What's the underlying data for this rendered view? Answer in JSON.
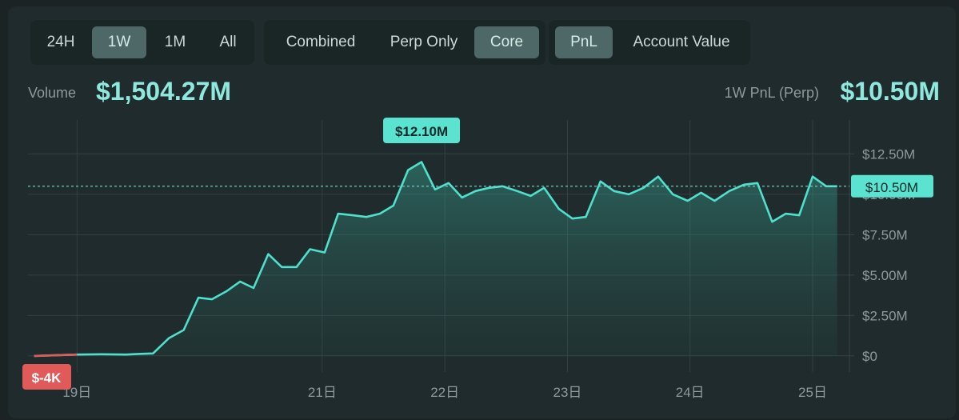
{
  "range_tabs": [
    {
      "label": "24H",
      "active": false
    },
    {
      "label": "1W",
      "active": true
    },
    {
      "label": "1M",
      "active": false
    },
    {
      "label": "All",
      "active": false
    }
  ],
  "scope_tabs": [
    {
      "label": "Combined",
      "active": false
    },
    {
      "label": "Perp Only",
      "active": false
    },
    {
      "label": "Core",
      "active": true
    }
  ],
  "metric_tabs": [
    {
      "label": "PnL",
      "active": true
    },
    {
      "label": "Account Value",
      "active": false
    }
  ],
  "stats": {
    "volume_label": "Volume",
    "volume_value": "$1,504.27M",
    "pnl_label": "1W PnL (Perp)",
    "pnl_value": "$10.50M"
  },
  "colors": {
    "line": "#4fe0cd",
    "badge_min": "#e05a5a",
    "grid": "#334142",
    "axis_text": "#8d9b9b"
  },
  "chart_data": {
    "type": "area",
    "title": "",
    "xlabel": "",
    "ylabel": "",
    "unit": "$M",
    "ylim": [
      -1,
      14.6
    ],
    "xlim": [
      18.6,
      25.3
    ],
    "y_ticks": [
      {
        "value": 0,
        "label": "$0"
      },
      {
        "value": 2.5,
        "label": "$2.50M"
      },
      {
        "value": 5.0,
        "label": "$5.00M"
      },
      {
        "value": 7.5,
        "label": "$7.50M"
      },
      {
        "value": 10.0,
        "label": "$10.00M"
      },
      {
        "value": 12.5,
        "label": "$12.50M"
      }
    ],
    "x_ticks": [
      {
        "value": 19,
        "label": "19日"
      },
      {
        "value": 21,
        "label": "21日"
      },
      {
        "value": 22,
        "label": "22日"
      },
      {
        "value": 23,
        "label": "23日"
      },
      {
        "value": 24,
        "label": "24日"
      },
      {
        "value": 25,
        "label": "25日"
      }
    ],
    "max_label": "$12.10M",
    "min_label": "$-4K",
    "current_label": "$10.50M",
    "current_value": 10.5,
    "grid": true,
    "series": [
      {
        "x": [
          18.65,
          18.8,
          19.0,
          19.2,
          19.4,
          19.5,
          19.62,
          19.75,
          19.87,
          19.99,
          20.1,
          20.22,
          20.33,
          20.44,
          20.56,
          20.67,
          20.79,
          20.9,
          21.02,
          21.13,
          21.25,
          21.36,
          21.47,
          21.58,
          21.7,
          21.81,
          21.92,
          22.03,
          22.14,
          22.25,
          22.36,
          22.47,
          22.59,
          22.7,
          22.81,
          22.93,
          23.04,
          23.15,
          23.27,
          23.38,
          23.5,
          23.62,
          23.74,
          23.86,
          23.98,
          24.09,
          24.2,
          24.32,
          24.44,
          24.55,
          24.67,
          24.78,
          24.89,
          25.0,
          25.11,
          25.2
        ],
        "values": [
          -0.004,
          0.03,
          0.08,
          0.1,
          0.08,
          0.12,
          0.15,
          1.1,
          1.6,
          3.6,
          3.5,
          4.0,
          4.6,
          4.2,
          6.3,
          5.5,
          5.5,
          6.6,
          6.4,
          8.8,
          8.7,
          8.6,
          8.8,
          9.3,
          11.5,
          12.0,
          10.3,
          10.7,
          9.8,
          10.2,
          10.4,
          10.5,
          10.2,
          9.9,
          10.4,
          9.1,
          8.5,
          8.6,
          10.8,
          10.2,
          10.0,
          10.4,
          11.1,
          10.0,
          9.6,
          10.1,
          9.6,
          10.2,
          10.6,
          10.7,
          8.3,
          8.8,
          8.7,
          11.1,
          10.5,
          10.5
        ]
      }
    ]
  }
}
